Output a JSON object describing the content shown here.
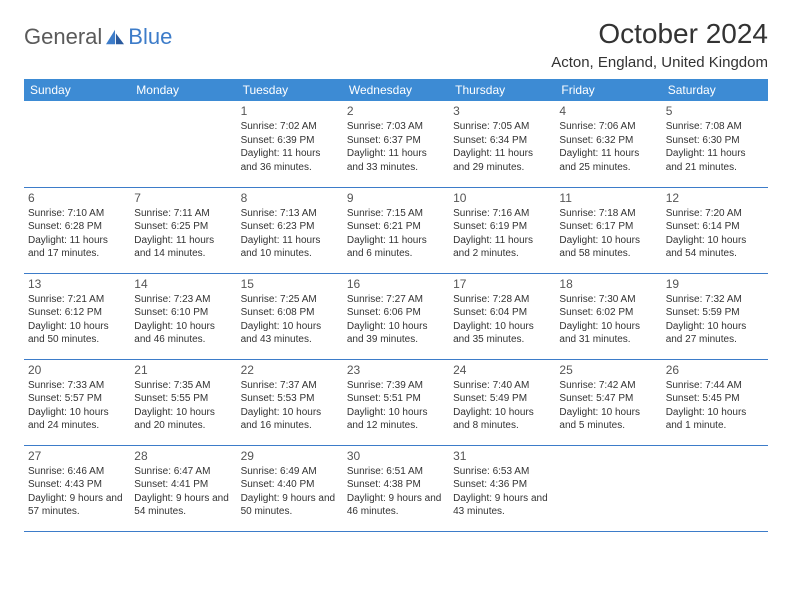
{
  "brand": {
    "part1": "General",
    "part2": "Blue"
  },
  "title": "October 2024",
  "location": "Acton, England, United Kingdom",
  "colors": {
    "header_bg": "#3d8bd4",
    "header_text": "#ffffff",
    "border": "#3d7cc9",
    "text": "#333333",
    "brand_gray": "#5a5a5a",
    "brand_blue": "#3d7cc9"
  },
  "day_headers": [
    "Sunday",
    "Monday",
    "Tuesday",
    "Wednesday",
    "Thursday",
    "Friday",
    "Saturday"
  ],
  "weeks": [
    [
      null,
      null,
      {
        "n": "1",
        "sr": "Sunrise: 7:02 AM",
        "ss": "Sunset: 6:39 PM",
        "dl": "Daylight: 11 hours and 36 minutes."
      },
      {
        "n": "2",
        "sr": "Sunrise: 7:03 AM",
        "ss": "Sunset: 6:37 PM",
        "dl": "Daylight: 11 hours and 33 minutes."
      },
      {
        "n": "3",
        "sr": "Sunrise: 7:05 AM",
        "ss": "Sunset: 6:34 PM",
        "dl": "Daylight: 11 hours and 29 minutes."
      },
      {
        "n": "4",
        "sr": "Sunrise: 7:06 AM",
        "ss": "Sunset: 6:32 PM",
        "dl": "Daylight: 11 hours and 25 minutes."
      },
      {
        "n": "5",
        "sr": "Sunrise: 7:08 AM",
        "ss": "Sunset: 6:30 PM",
        "dl": "Daylight: 11 hours and 21 minutes."
      }
    ],
    [
      {
        "n": "6",
        "sr": "Sunrise: 7:10 AM",
        "ss": "Sunset: 6:28 PM",
        "dl": "Daylight: 11 hours and 17 minutes."
      },
      {
        "n": "7",
        "sr": "Sunrise: 7:11 AM",
        "ss": "Sunset: 6:25 PM",
        "dl": "Daylight: 11 hours and 14 minutes."
      },
      {
        "n": "8",
        "sr": "Sunrise: 7:13 AM",
        "ss": "Sunset: 6:23 PM",
        "dl": "Daylight: 11 hours and 10 minutes."
      },
      {
        "n": "9",
        "sr": "Sunrise: 7:15 AM",
        "ss": "Sunset: 6:21 PM",
        "dl": "Daylight: 11 hours and 6 minutes."
      },
      {
        "n": "10",
        "sr": "Sunrise: 7:16 AM",
        "ss": "Sunset: 6:19 PM",
        "dl": "Daylight: 11 hours and 2 minutes."
      },
      {
        "n": "11",
        "sr": "Sunrise: 7:18 AM",
        "ss": "Sunset: 6:17 PM",
        "dl": "Daylight: 10 hours and 58 minutes."
      },
      {
        "n": "12",
        "sr": "Sunrise: 7:20 AM",
        "ss": "Sunset: 6:14 PM",
        "dl": "Daylight: 10 hours and 54 minutes."
      }
    ],
    [
      {
        "n": "13",
        "sr": "Sunrise: 7:21 AM",
        "ss": "Sunset: 6:12 PM",
        "dl": "Daylight: 10 hours and 50 minutes."
      },
      {
        "n": "14",
        "sr": "Sunrise: 7:23 AM",
        "ss": "Sunset: 6:10 PM",
        "dl": "Daylight: 10 hours and 46 minutes."
      },
      {
        "n": "15",
        "sr": "Sunrise: 7:25 AM",
        "ss": "Sunset: 6:08 PM",
        "dl": "Daylight: 10 hours and 43 minutes."
      },
      {
        "n": "16",
        "sr": "Sunrise: 7:27 AM",
        "ss": "Sunset: 6:06 PM",
        "dl": "Daylight: 10 hours and 39 minutes."
      },
      {
        "n": "17",
        "sr": "Sunrise: 7:28 AM",
        "ss": "Sunset: 6:04 PM",
        "dl": "Daylight: 10 hours and 35 minutes."
      },
      {
        "n": "18",
        "sr": "Sunrise: 7:30 AM",
        "ss": "Sunset: 6:02 PM",
        "dl": "Daylight: 10 hours and 31 minutes."
      },
      {
        "n": "19",
        "sr": "Sunrise: 7:32 AM",
        "ss": "Sunset: 5:59 PM",
        "dl": "Daylight: 10 hours and 27 minutes."
      }
    ],
    [
      {
        "n": "20",
        "sr": "Sunrise: 7:33 AM",
        "ss": "Sunset: 5:57 PM",
        "dl": "Daylight: 10 hours and 24 minutes."
      },
      {
        "n": "21",
        "sr": "Sunrise: 7:35 AM",
        "ss": "Sunset: 5:55 PM",
        "dl": "Daylight: 10 hours and 20 minutes."
      },
      {
        "n": "22",
        "sr": "Sunrise: 7:37 AM",
        "ss": "Sunset: 5:53 PM",
        "dl": "Daylight: 10 hours and 16 minutes."
      },
      {
        "n": "23",
        "sr": "Sunrise: 7:39 AM",
        "ss": "Sunset: 5:51 PM",
        "dl": "Daylight: 10 hours and 12 minutes."
      },
      {
        "n": "24",
        "sr": "Sunrise: 7:40 AM",
        "ss": "Sunset: 5:49 PM",
        "dl": "Daylight: 10 hours and 8 minutes."
      },
      {
        "n": "25",
        "sr": "Sunrise: 7:42 AM",
        "ss": "Sunset: 5:47 PM",
        "dl": "Daylight: 10 hours and 5 minutes."
      },
      {
        "n": "26",
        "sr": "Sunrise: 7:44 AM",
        "ss": "Sunset: 5:45 PM",
        "dl": "Daylight: 10 hours and 1 minute."
      }
    ],
    [
      {
        "n": "27",
        "sr": "Sunrise: 6:46 AM",
        "ss": "Sunset: 4:43 PM",
        "dl": "Daylight: 9 hours and 57 minutes."
      },
      {
        "n": "28",
        "sr": "Sunrise: 6:47 AM",
        "ss": "Sunset: 4:41 PM",
        "dl": "Daylight: 9 hours and 54 minutes."
      },
      {
        "n": "29",
        "sr": "Sunrise: 6:49 AM",
        "ss": "Sunset: 4:40 PM",
        "dl": "Daylight: 9 hours and 50 minutes."
      },
      {
        "n": "30",
        "sr": "Sunrise: 6:51 AM",
        "ss": "Sunset: 4:38 PM",
        "dl": "Daylight: 9 hours and 46 minutes."
      },
      {
        "n": "31",
        "sr": "Sunrise: 6:53 AM",
        "ss": "Sunset: 4:36 PM",
        "dl": "Daylight: 9 hours and 43 minutes."
      },
      null,
      null
    ]
  ]
}
